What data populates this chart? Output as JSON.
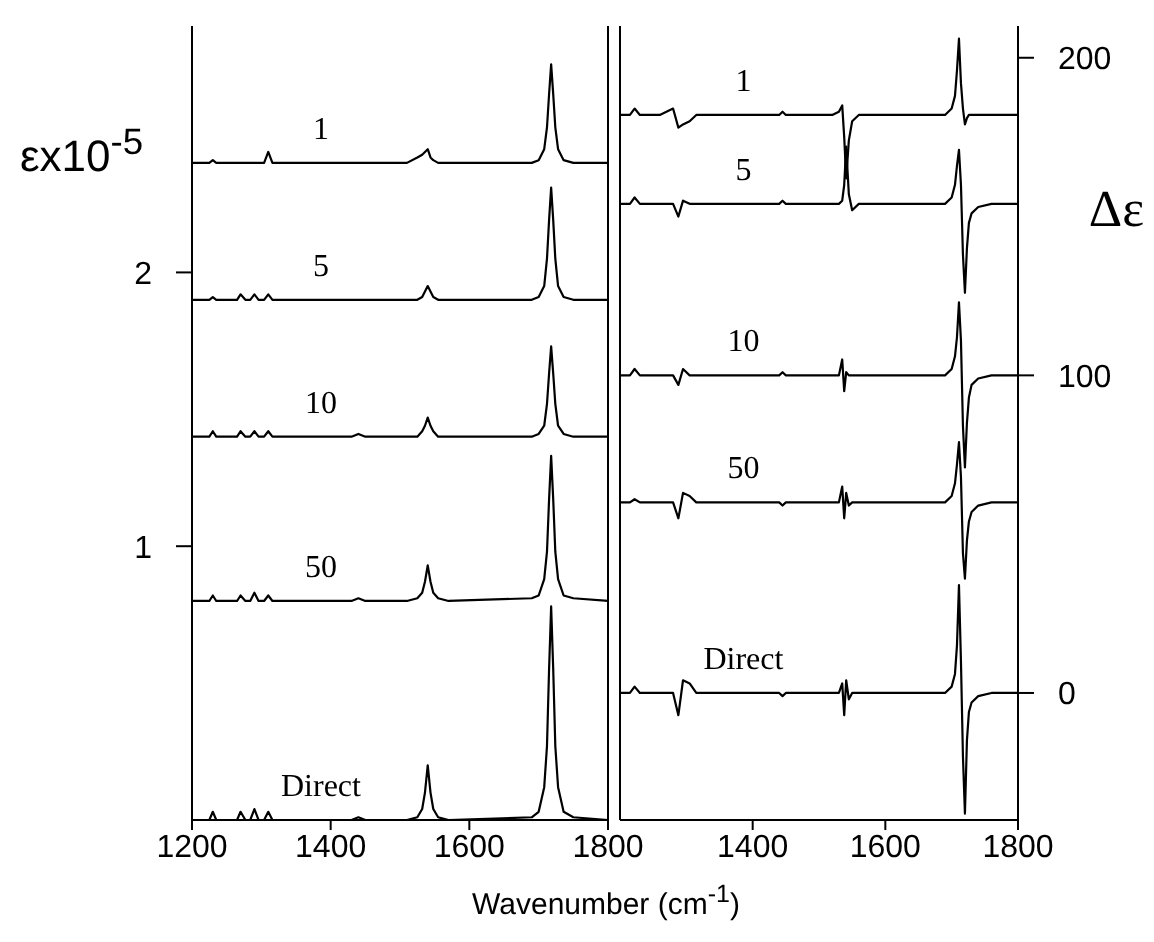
{
  "chart_data": [
    {
      "type": "line",
      "ylabel": "εx10$^{-5}$",
      "xlim": [
        1200,
        1800
      ],
      "xticks": [
        1200,
        1400,
        1600,
        1800
      ],
      "ylim": [
        0,
        2.9
      ],
      "yticks": [
        1,
        2
      ],
      "marker": "none",
      "line_style": "solid",
      "x": [
        1200,
        1225,
        1230,
        1235,
        1265,
        1270,
        1277,
        1284,
        1290,
        1296,
        1304,
        1310,
        1316,
        1430,
        1440,
        1450,
        1510,
        1525,
        1532,
        1536,
        1540,
        1544,
        1548,
        1555,
        1570,
        1690,
        1700,
        1708,
        1712,
        1715,
        1718,
        1721,
        1724,
        1728,
        1736,
        1750,
        1800
      ],
      "series": [
        {
          "name": "Direct",
          "color": "#000000",
          "values": [
            0,
            0,
            0.03,
            0,
            0,
            0.03,
            0,
            0,
            0.04,
            0,
            0,
            0.03,
            0,
            0,
            0.01,
            0,
            0,
            0.01,
            0.04,
            0.1,
            0.2,
            0.1,
            0.04,
            0.01,
            0,
            0.01,
            0.03,
            0.12,
            0.27,
            0.55,
            0.78,
            0.55,
            0.27,
            0.12,
            0.03,
            0.01,
            0
          ]
        },
        {
          "name": "50",
          "color": "#000000",
          "values": [
            0.8,
            0.8,
            0.82,
            0.8,
            0.8,
            0.82,
            0.8,
            0.8,
            0.83,
            0.8,
            0.8,
            0.82,
            0.8,
            0.8,
            0.81,
            0.8,
            0.8,
            0.81,
            0.83,
            0.87,
            0.93,
            0.87,
            0.83,
            0.81,
            0.8,
            0.81,
            0.82,
            0.88,
            0.98,
            1.17,
            1.33,
            1.17,
            0.98,
            0.88,
            0.82,
            0.81,
            0.8
          ]
        },
        {
          "name": "10",
          "color": "#000000",
          "values": [
            1.4,
            1.4,
            1.42,
            1.4,
            1.4,
            1.42,
            1.4,
            1.4,
            1.42,
            1.4,
            1.4,
            1.42,
            1.4,
            1.4,
            1.41,
            1.4,
            1.4,
            1.4,
            1.42,
            1.44,
            1.47,
            1.44,
            1.42,
            1.4,
            1.4,
            1.4,
            1.41,
            1.44,
            1.52,
            1.63,
            1.73,
            1.63,
            1.52,
            1.44,
            1.41,
            1.4,
            1.4
          ]
        },
        {
          "name": "5",
          "color": "#000000",
          "values": [
            1.9,
            1.9,
            1.91,
            1.9,
            1.9,
            1.92,
            1.9,
            1.9,
            1.92,
            1.9,
            1.9,
            1.92,
            1.9,
            1.9,
            1.9,
            1.9,
            1.9,
            1.9,
            1.91,
            1.93,
            1.95,
            1.93,
            1.91,
            1.9,
            1.9,
            1.9,
            1.91,
            1.95,
            2.05,
            2.19,
            2.31,
            2.19,
            2.05,
            1.95,
            1.91,
            1.9,
            1.9
          ]
        },
        {
          "name": "1",
          "color": "#000000",
          "values": [
            2.4,
            2.4,
            2.41,
            2.4,
            2.4,
            2.4,
            2.4,
            2.4,
            2.4,
            2.4,
            2.4,
            2.44,
            2.4,
            2.4,
            2.4,
            2.4,
            2.4,
            2.42,
            2.43,
            2.44,
            2.45,
            2.42,
            2.41,
            2.4,
            2.4,
            2.4,
            2.41,
            2.45,
            2.53,
            2.65,
            2.76,
            2.65,
            2.53,
            2.45,
            2.41,
            2.4,
            2.4
          ]
        }
      ]
    },
    {
      "type": "line",
      "y2label": "Δε",
      "xlabel": "Wavenumber (cm$^{-1}$)",
      "xlim": [
        1200,
        1800
      ],
      "xticks": [
        1400,
        1600,
        1800
      ],
      "y2lim": [
        -40,
        210
      ],
      "y2ticks": [
        0,
        100,
        200
      ],
      "marker": "none",
      "line_style": "solid",
      "x": [
        1200,
        1215,
        1222,
        1230,
        1260,
        1280,
        1288,
        1295,
        1305,
        1315,
        1340,
        1440,
        1445,
        1450,
        1520,
        1530,
        1535,
        1538,
        1541,
        1545,
        1550,
        1560,
        1690,
        1700,
        1705,
        1708,
        1711,
        1714,
        1717,
        1720,
        1723,
        1726,
        1730,
        1740,
        1760,
        1800
      ],
      "series": [
        {
          "name": "Direct",
          "color": "#000000",
          "axis": "y2",
          "values": [
            0,
            0,
            2,
            0,
            0,
            0,
            -7,
            4,
            3,
            0,
            0,
            0,
            -1,
            0,
            0,
            0,
            3,
            -7,
            4,
            -2,
            0,
            0,
            0,
            2,
            6,
            15,
            34,
            10,
            -20,
            -38,
            -15,
            -6,
            -3,
            -1,
            0,
            0
          ]
        },
        {
          "name": "50",
          "color": "#000000",
          "axis": "y2",
          "values": [
            60,
            60,
            61,
            60,
            60,
            60,
            55,
            63,
            62,
            60,
            60,
            60,
            59,
            60,
            60,
            60,
            65,
            55,
            63,
            59,
            60,
            60,
            60,
            62,
            66,
            72,
            79,
            68,
            44,
            36,
            48,
            54,
            57,
            59,
            60,
            60
          ]
        },
        {
          "name": "10",
          "color": "#000000",
          "axis": "y2",
          "values": [
            100,
            100,
            102,
            100,
            100,
            100,
            97,
            102,
            100,
            100,
            100,
            100,
            101,
            100,
            100,
            100,
            105,
            95,
            101,
            100,
            100,
            100,
            100,
            102,
            106,
            112,
            123,
            111,
            84,
            71,
            85,
            93,
            97,
            99,
            100,
            100
          ]
        },
        {
          "name": "5",
          "color": "#000000",
          "axis": "y2",
          "values": [
            154,
            154,
            156,
            154,
            154,
            154,
            150,
            155,
            154,
            154,
            154,
            154,
            155,
            154,
            154,
            154,
            155,
            160,
            172,
            157,
            152,
            154,
            154,
            156,
            160,
            166,
            171,
            160,
            138,
            126,
            140,
            148,
            151,
            153,
            154,
            154
          ]
        },
        {
          "name": "1",
          "color": "#000000",
          "axis": "y2",
          "values": [
            182,
            182,
            184,
            182,
            182,
            184,
            178,
            179,
            180,
            182,
            182,
            182,
            183,
            182,
            182,
            183,
            185,
            175,
            162,
            174,
            180,
            182,
            182,
            184,
            188,
            196,
            206,
            192,
            184,
            179,
            181,
            182,
            182,
            182,
            182,
            182
          ]
        }
      ]
    }
  ]
}
